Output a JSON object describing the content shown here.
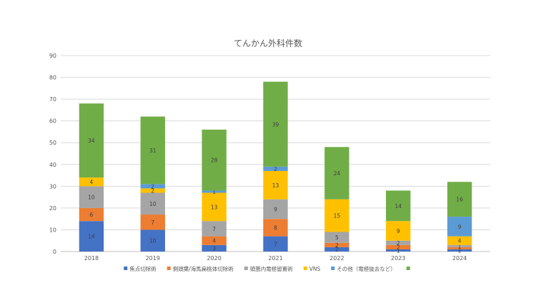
{
  "chart_data": {
    "type": "bar",
    "stacked": true,
    "title": "てんかん外科件数",
    "xlabel": "",
    "ylabel": "",
    "ylim": [
      0,
      90
    ],
    "yticks": [
      0,
      10,
      20,
      30,
      40,
      50,
      60,
      70,
      80,
      90
    ],
    "grid": true,
    "legend_position": "bottom",
    "categories": [
      "2018",
      "2019",
      "2020",
      "2021",
      "2022",
      "2023",
      "2024"
    ],
    "series": [
      {
        "name": "焦点切除術",
        "color": "#4472c4",
        "values": [
          14,
          10,
          3,
          7,
          2,
          1,
          1
        ]
      },
      {
        "name": "側頭葉/海馬扁桃体切除術",
        "color": "#ed7d31",
        "values": [
          6,
          7,
          4,
          8,
          2,
          2,
          1
        ]
      },
      {
        "name": "頭蓋内電極留置術",
        "color": "#a5a5a5",
        "values": [
          10,
          10,
          7,
          9,
          5,
          2,
          1
        ]
      },
      {
        "name": "VNS",
        "color": "#ffc000",
        "values": [
          4,
          2,
          13,
          13,
          15,
          9,
          4
        ]
      },
      {
        "name": "その他（電極抜去など）",
        "color": "#5b9bd5",
        "values": [
          0,
          2,
          1,
          2,
          0,
          0,
          9
        ]
      },
      {
        "name": "",
        "color": "#70ad47",
        "values": [
          34,
          31,
          28,
          39,
          24,
          14,
          16
        ]
      }
    ]
  }
}
